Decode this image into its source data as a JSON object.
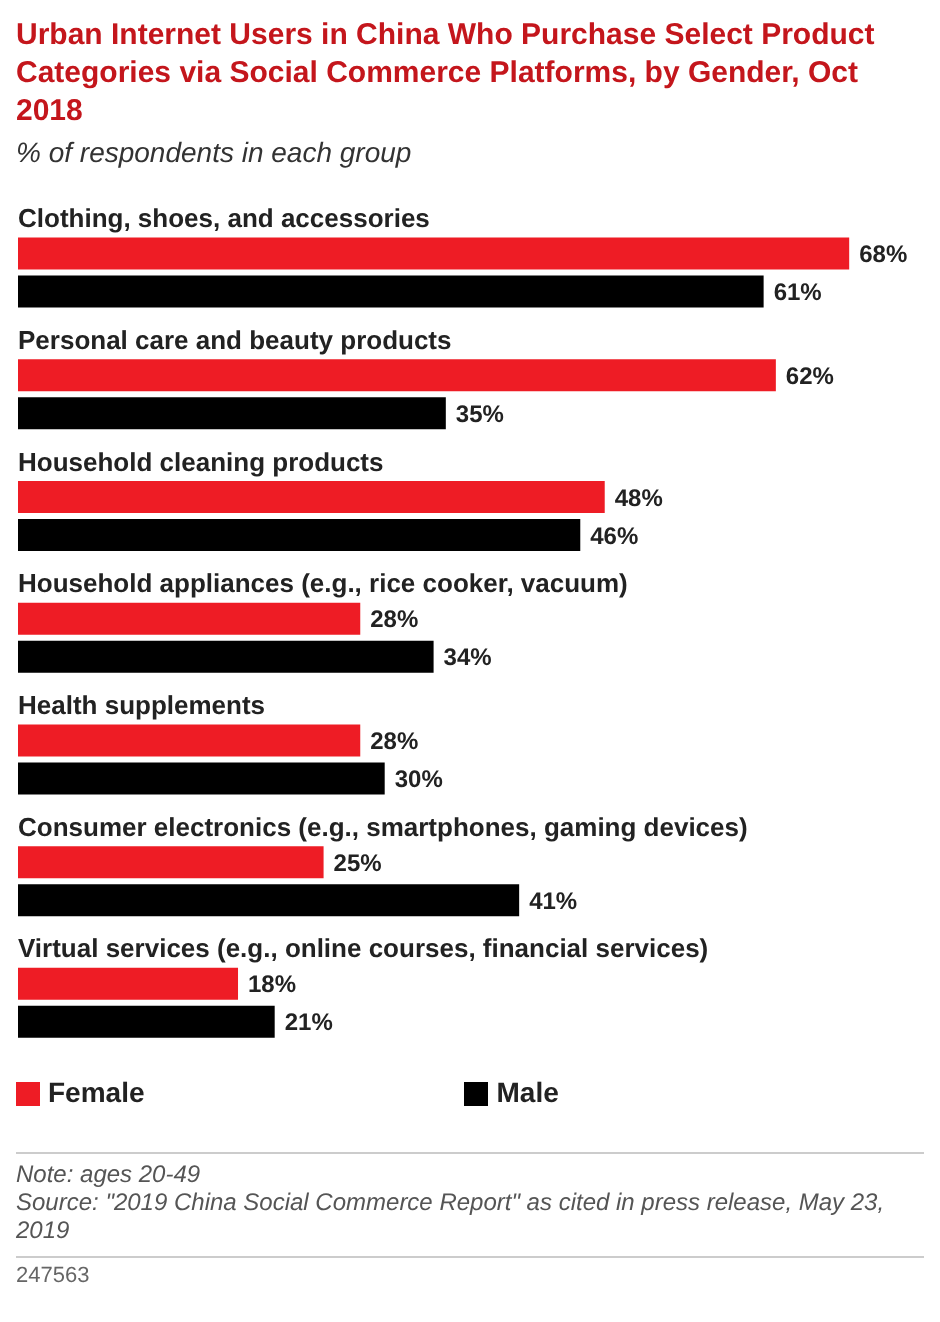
{
  "chart_data": {
    "type": "bar",
    "orientation": "horizontal",
    "title": "Urban Internet Users in China Who Purchase Select Product Categories via Social Commerce Platforms, by Gender, Oct 2018",
    "subtitle": "% of respondents in each group",
    "categories": [
      "Clothing, shoes, and accessories",
      "Personal care and beauty products",
      "Household cleaning products",
      "Household appliances (e.g., rice cooker, vacuum)",
      "Health supplements",
      "Consumer electronics (e.g., smartphones, gaming devices)",
      "Virtual services (e.g., online courses, financial services)"
    ],
    "series": [
      {
        "name": "Female",
        "color": "#ee1c25",
        "values": [
          68,
          62,
          48,
          28,
          28,
          25,
          18
        ],
        "value_labels": [
          "68%",
          "62%",
          "48%",
          "28%",
          "28%",
          "25%",
          "18%"
        ]
      },
      {
        "name": "Male",
        "color": "#000000",
        "values": [
          61,
          35,
          46,
          34,
          30,
          41,
          21
        ],
        "value_labels": [
          "61%",
          "35%",
          "46%",
          "34%",
          "30%",
          "41%",
          "21%"
        ]
      }
    ],
    "legend": "bottom",
    "annotations": [
      "Note: ages 20-49",
      "Source: \"2019 China Social Commerce Report\" as cited in press release, May 23, 2019",
      "247563"
    ]
  }
}
